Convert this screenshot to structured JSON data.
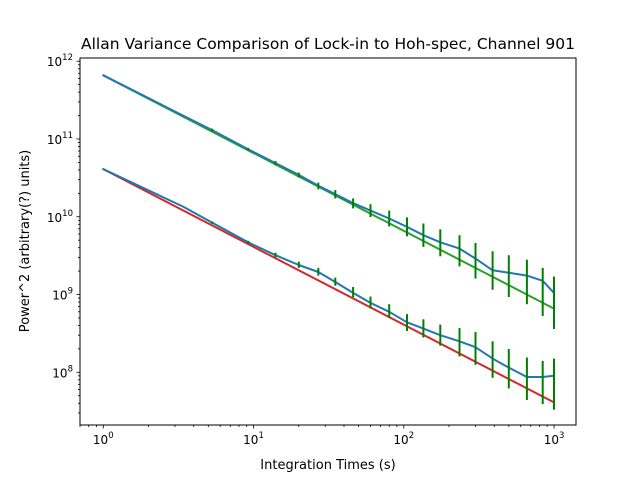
{
  "chart_data": {
    "type": "line",
    "title": "Allan Variance Comparison of Lock-in to Hoh-spec, Channel 901",
    "xlabel": "Integration Times (s)",
    "ylabel": "Power^2 (arbitrary(?) units)",
    "xscale": "log",
    "yscale": "log",
    "xlim": [
      0.7,
      1400
    ],
    "ylim": [
      21000000.0,
      1100000000000.0
    ],
    "x_ticks": [
      {
        "base": "10",
        "exp": "0",
        "value": 1
      },
      {
        "base": "10",
        "exp": "1",
        "value": 10
      },
      {
        "base": "10",
        "exp": "2",
        "value": 100
      },
      {
        "base": "10",
        "exp": "3",
        "value": 1000
      }
    ],
    "y_ticks": [
      {
        "base": "10",
        "exp": "8",
        "value": 100000000.0
      },
      {
        "base": "10",
        "exp": "9",
        "value": 1000000000.0
      },
      {
        "base": "10",
        "exp": "10",
        "value": 10000000000.0
      },
      {
        "base": "10",
        "exp": "11",
        "value": 100000000000.0
      },
      {
        "base": "10",
        "exp": "12",
        "value": 1000000000000.0
      }
    ],
    "grid": false,
    "legend": "none",
    "series": [
      {
        "color": "#2ca02c",
        "kind": "line",
        "x": [
          1,
          1000
        ],
        "y": [
          660000000000.0,
          660000000.0
        ]
      },
      {
        "color": "#d62728",
        "kind": "line",
        "x": [
          1,
          1000
        ],
        "y": [
          41000000000.0,
          41000000.0
        ]
      },
      {
        "color": "#1f77b4",
        "kind": "line",
        "x": [
          1,
          3.4,
          5.3,
          9.2,
          14,
          20,
          27,
          35,
          46,
          60,
          80,
          105,
          135,
          175,
          235,
          300,
          390,
          500,
          660,
          840,
          1000
        ],
        "y": [
          660000000000.0,
          200000000000.0,
          130000000000.0,
          74000000000.0,
          49000000000.0,
          34500000000.0,
          25000000000.0,
          19500000000.0,
          15000000000.0,
          12000000000.0,
          9500000000.0,
          7400000000.0,
          5800000000.0,
          4700000000.0,
          3900000000.0,
          2900000000.0,
          2050000000.0,
          1900000000.0,
          1750000000.0,
          1500000000.0,
          1050000000.0
        ]
      },
      {
        "color": "#1f77b4",
        "kind": "line",
        "x": [
          1,
          3.4,
          5.3,
          9.2,
          14,
          20,
          27,
          35,
          46,
          60,
          80,
          105,
          135,
          175,
          235,
          300,
          390,
          500,
          660,
          840,
          1000
        ],
        "y": [
          41000000000.0,
          13500000000.0,
          8400000000.0,
          4700000000.0,
          3200000000.0,
          2400000000.0,
          1950000000.0,
          1450000000.0,
          1050000000.0,
          780000000.0,
          600000000.0,
          440000000.0,
          365000000.0,
          300000000.0,
          250000000.0,
          210000000.0,
          150000000.0,
          115000000.0,
          87000000.0,
          87000000.0,
          90000000.0
        ]
      }
    ],
    "error_bars": [
      {
        "color": "#008000",
        "x": [
          5.3,
          9.2,
          14,
          20,
          27,
          35,
          46,
          60,
          80,
          105,
          135,
          175,
          235,
          300,
          390,
          500,
          660,
          840,
          1000
        ],
        "y_low": [
          125000000000.0,
          71000000000.0,
          46000000000.0,
          32000000000.0,
          22500000000.0,
          17200000000.0,
          12800000000.0,
          9900000000.0,
          7500000000.0,
          5600000000.0,
          4100000000.0,
          3100000000.0,
          2300000000.0,
          1600000000.0,
          1150000000.0,
          930000000.0,
          750000000.0,
          530000000.0,
          360000000.0
        ],
        "y_high": [
          136000000000.0,
          77000000000.0,
          52000000000.0,
          37000000000.0,
          27500000000.0,
          22000000000.0,
          17200000000.0,
          14500000000.0,
          12000000000.0,
          9800000000.0,
          8200000000.0,
          6900000000.0,
          5800000000.0,
          4600000000.0,
          3600000000.0,
          3200000000.0,
          2800000000.0,
          2200000000.0,
          1700000000.0
        ]
      },
      {
        "color": "#008000",
        "x": [
          5.3,
          9.2,
          14,
          20,
          27,
          35,
          46,
          60,
          80,
          105,
          135,
          175,
          235,
          300,
          390,
          500,
          660,
          840,
          1000
        ],
        "y_low": [
          8100000000.0,
          4500000000.0,
          3000000000.0,
          2200000000.0,
          1750000000.0,
          1300000000.0,
          920000000.0,
          660000000.0,
          500000000.0,
          340000000.0,
          280000000.0,
          220000000.0,
          160000000.0,
          125000000.0,
          85000000.0,
          62000000.0,
          44000000.0,
          39000000.0,
          33000000.0
        ],
        "y_high": [
          8700000000.0,
          4900000000.0,
          3450000000.0,
          2650000000.0,
          2200000000.0,
          1650000000.0,
          1250000000.0,
          940000000.0,
          750000000.0,
          560000000.0,
          480000000.0,
          410000000.0,
          370000000.0,
          330000000.0,
          250000000.0,
          200000000.0,
          155000000.0,
          140000000.0,
          150000000.0
        ]
      }
    ]
  }
}
